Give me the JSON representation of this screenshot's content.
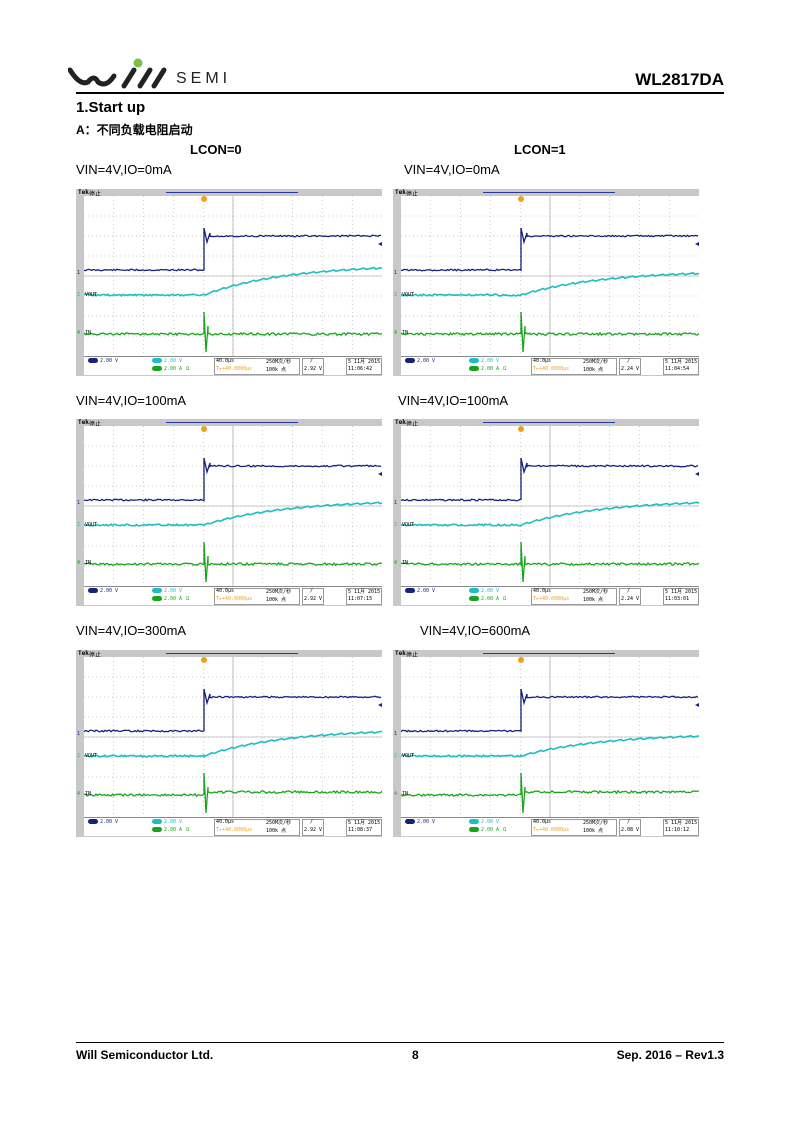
{
  "header": {
    "logo_text": "SEMI",
    "doc_id": "WL2817DA"
  },
  "section": {
    "title": "1.Start up",
    "subtitle": "A：不同负载电阻启动",
    "col_left": "LCON=0",
    "col_right": "LCON=1"
  },
  "colors": {
    "ch1": "#16237d",
    "ch2": "#1ebdc4",
    "ch4": "#18a51c",
    "trigger": "#f0a020",
    "scope_bezel": "#c8c8c8"
  },
  "scopes": [
    {
      "caption": "VIN=4V,IO=0mA",
      "ch2_level": "2.92 V",
      "time": "11:06:42",
      "rise": 0.45
    },
    {
      "caption": "VIN=4V,IO=0mA",
      "ch2_level": "2.24 V",
      "time": "11:04:54",
      "rise": 0.36
    },
    {
      "caption": "VIN=4V,IO=100mA",
      "ch2_level": "2.92 V",
      "time": "11:07:15",
      "rise": 0.37
    },
    {
      "caption": "VIN=4V,IO=100mA",
      "ch2_level": "2.24 V",
      "time": "11:03:01",
      "rise": 0.37
    },
    {
      "caption": "VIN=4V,IO=300mA",
      "ch2_level": "2.92 V",
      "time": "11:08:37",
      "rise": 0.4
    },
    {
      "caption": "VIN=4V,IO=600mA",
      "ch2_level": "2.08 V",
      "time": "11:10:12",
      "rise": 0.33
    }
  ],
  "scope_common": {
    "brand": "Tek",
    "state": "停止",
    "ch1_label": "1",
    "ch1_scale": "2.00 V",
    "ch2_label": "2",
    "ch2_name": "VOUT",
    "ch2_scale": "2.00 V",
    "ch4_label": "4",
    "ch4_name": "IN",
    "ch4_scale": "2.00 A",
    "ch4_unit_sym": "Ω",
    "timebase": "40.0μs",
    "trig_offset": "T▸+40.0000μs",
    "sample_rate": "250M次/秒",
    "points": "100k 点",
    "slope": "/",
    "date": "5 11月 2015"
  },
  "footer": {
    "company": "Will Semiconductor Ltd.",
    "page": "8",
    "revision": "Sep. 2016 – Rev1.3"
  }
}
